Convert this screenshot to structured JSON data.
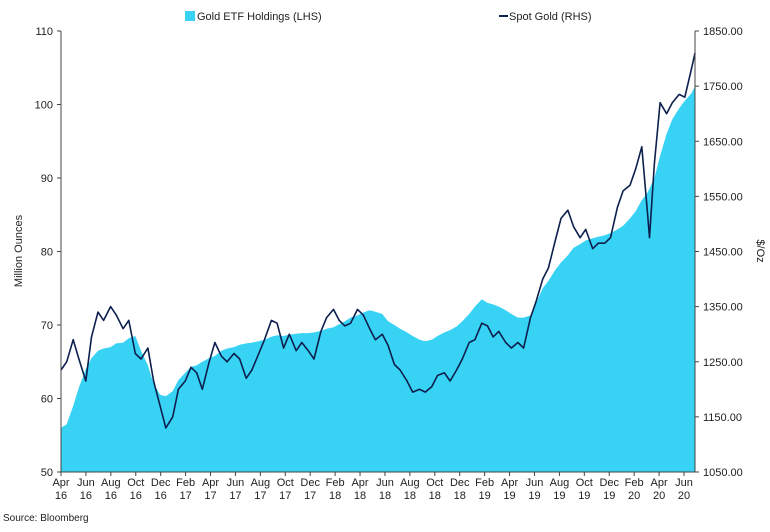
{
  "chart_data": {
    "type": "area",
    "legend_position": "top",
    "grid": false,
    "source_note": "Source: Bloomberg",
    "ylabel_left": "Million Ounces",
    "ylabel_right": "$/Oz",
    "ylim_left": [
      50,
      110
    ],
    "ylim_right": [
      1050,
      1850
    ],
    "yticks_left": [
      "50",
      "60",
      "70",
      "80",
      "90",
      "100",
      "110"
    ],
    "yticks_right": [
      "1050.00",
      "1150.00",
      "1250.00",
      "1350.00",
      "1450.00",
      "1550.00",
      "1650.00",
      "1750.00",
      "1850.00"
    ],
    "x_ticks": [
      {
        "month": "Apr",
        "year": "16"
      },
      {
        "month": "Jun",
        "year": "16"
      },
      {
        "month": "Aug",
        "year": "16"
      },
      {
        "month": "Oct",
        "year": "16"
      },
      {
        "month": "Dec",
        "year": "16"
      },
      {
        "month": "Feb",
        "year": "17"
      },
      {
        "month": "Apr",
        "year": "17"
      },
      {
        "month": "Jun",
        "year": "17"
      },
      {
        "month": "Aug",
        "year": "17"
      },
      {
        "month": "Oct",
        "year": "17"
      },
      {
        "month": "Dec",
        "year": "17"
      },
      {
        "month": "Feb",
        "year": "18"
      },
      {
        "month": "Apr",
        "year": "18"
      },
      {
        "month": "Jun",
        "year": "18"
      },
      {
        "month": "Aug",
        "year": "18"
      },
      {
        "month": "Oct",
        "year": "18"
      },
      {
        "month": "Dec",
        "year": "18"
      },
      {
        "month": "Feb",
        "year": "19"
      },
      {
        "month": "Apr",
        "year": "19"
      },
      {
        "month": "Jun",
        "year": "19"
      },
      {
        "month": "Aug",
        "year": "19"
      },
      {
        "month": "Oct",
        "year": "19"
      },
      {
        "month": "Dec",
        "year": "19"
      },
      {
        "month": "Feb",
        "year": "20"
      },
      {
        "month": "Apr",
        "year": "20"
      },
      {
        "month": "Jun",
        "year": "20"
      }
    ],
    "series": [
      {
        "name": "Gold ETF Holdings (LHS)",
        "type": "area",
        "axis": "left",
        "color": "#38d2f5",
        "x": [
          "2016-04-01",
          "2016-04-15",
          "2016-05-01",
          "2016-05-15",
          "2016-06-01",
          "2016-06-15",
          "2016-07-01",
          "2016-07-15",
          "2016-08-01",
          "2016-08-15",
          "2016-09-01",
          "2016-09-15",
          "2016-10-01",
          "2016-10-15",
          "2016-11-01",
          "2016-11-15",
          "2016-12-01",
          "2016-12-15",
          "2017-01-01",
          "2017-01-15",
          "2017-02-01",
          "2017-02-15",
          "2017-03-01",
          "2017-03-15",
          "2017-04-01",
          "2017-04-15",
          "2017-05-01",
          "2017-05-15",
          "2017-06-01",
          "2017-06-15",
          "2017-07-01",
          "2017-07-15",
          "2017-08-01",
          "2017-08-15",
          "2017-09-01",
          "2017-09-15",
          "2017-10-01",
          "2017-10-15",
          "2017-11-01",
          "2017-11-15",
          "2017-12-01",
          "2017-12-15",
          "2018-01-01",
          "2018-01-15",
          "2018-02-01",
          "2018-02-15",
          "2018-03-01",
          "2018-03-15",
          "2018-04-01",
          "2018-04-15",
          "2018-05-01",
          "2018-05-15",
          "2018-06-01",
          "2018-06-15",
          "2018-07-01",
          "2018-07-15",
          "2018-08-01",
          "2018-08-15",
          "2018-09-01",
          "2018-09-15",
          "2018-10-01",
          "2018-10-15",
          "2018-11-01",
          "2018-11-15",
          "2018-12-01",
          "2018-12-15",
          "2019-01-01",
          "2019-01-15",
          "2019-02-01",
          "2019-02-15",
          "2019-03-01",
          "2019-03-15",
          "2019-04-01",
          "2019-04-15",
          "2019-05-01",
          "2019-05-15",
          "2019-06-01",
          "2019-06-15",
          "2019-07-01",
          "2019-07-15",
          "2019-08-01",
          "2019-08-15",
          "2019-09-01",
          "2019-09-15",
          "2019-10-01",
          "2019-10-15",
          "2019-11-01",
          "2019-11-15",
          "2019-12-01",
          "2019-12-15",
          "2020-01-01",
          "2020-01-15",
          "2020-02-01",
          "2020-02-15",
          "2020-03-01",
          "2020-03-15",
          "2020-04-01",
          "2020-04-15",
          "2020-05-01",
          "2020-05-15",
          "2020-06-01",
          "2020-06-15",
          "2020-07-01",
          "2020-07-10"
        ],
        "values": [
          56,
          56.5,
          59,
          61.5,
          64,
          65.5,
          66.5,
          66.8,
          67,
          67.5,
          67.6,
          68.2,
          68.5,
          66.5,
          64.5,
          62,
          60.5,
          60.3,
          61,
          62.5,
          63.5,
          64.3,
          64.5,
          65,
          65.5,
          65.8,
          66.5,
          66.8,
          67,
          67.3,
          67.5,
          67.6,
          67.8,
          68,
          68.4,
          68.6,
          68.5,
          68.7,
          68.8,
          68.9,
          68.9,
          69,
          69.2,
          69.5,
          69.7,
          70.1,
          70.5,
          71,
          71.3,
          71.7,
          72,
          71.8,
          71.5,
          70.5,
          70,
          69.5,
          69,
          68.5,
          68,
          67.8,
          68,
          68.5,
          69,
          69.3,
          69.8,
          70.5,
          71.5,
          72.5,
          73.5,
          73,
          72.8,
          72.5,
          72,
          71.5,
          71,
          71,
          71.3,
          73,
          75,
          76,
          77.5,
          78.5,
          79.5,
          80.5,
          81,
          81.5,
          81.8,
          82,
          82.2,
          82.5,
          83,
          83.5,
          84.5,
          85.5,
          87,
          88,
          90,
          93,
          96,
          98,
          99.5,
          100.5,
          101.5,
          102.5
        ]
      },
      {
        "name": "Spot Gold (RHS)",
        "type": "line",
        "axis": "right",
        "color": "#0d1f4c",
        "x": [
          "2016-04-01",
          "2016-04-15",
          "2016-05-01",
          "2016-05-15",
          "2016-06-01",
          "2016-06-15",
          "2016-07-01",
          "2016-07-15",
          "2016-08-01",
          "2016-08-15",
          "2016-09-01",
          "2016-09-15",
          "2016-10-01",
          "2016-10-15",
          "2016-11-01",
          "2016-11-15",
          "2016-12-01",
          "2016-12-15",
          "2017-01-01",
          "2017-01-15",
          "2017-02-01",
          "2017-02-15",
          "2017-03-01",
          "2017-03-15",
          "2017-04-01",
          "2017-04-15",
          "2017-05-01",
          "2017-05-15",
          "2017-06-01",
          "2017-06-15",
          "2017-07-01",
          "2017-07-15",
          "2017-08-01",
          "2017-08-15",
          "2017-09-01",
          "2017-09-15",
          "2017-10-01",
          "2017-10-15",
          "2017-11-01",
          "2017-11-15",
          "2017-12-01",
          "2017-12-15",
          "2018-01-01",
          "2018-01-15",
          "2018-02-01",
          "2018-02-15",
          "2018-03-01",
          "2018-03-15",
          "2018-04-01",
          "2018-04-15",
          "2018-05-01",
          "2018-05-15",
          "2018-06-01",
          "2018-06-15",
          "2018-07-01",
          "2018-07-15",
          "2018-08-01",
          "2018-08-15",
          "2018-09-01",
          "2018-09-15",
          "2018-10-01",
          "2018-10-15",
          "2018-11-01",
          "2018-11-15",
          "2018-12-01",
          "2018-12-15",
          "2019-01-01",
          "2019-01-15",
          "2019-02-01",
          "2019-02-15",
          "2019-03-01",
          "2019-03-15",
          "2019-04-01",
          "2019-04-15",
          "2019-05-01",
          "2019-05-15",
          "2019-06-01",
          "2019-06-15",
          "2019-07-01",
          "2019-07-15",
          "2019-08-01",
          "2019-08-15",
          "2019-09-01",
          "2019-09-15",
          "2019-10-01",
          "2019-10-15",
          "2019-11-01",
          "2019-11-15",
          "2019-12-01",
          "2019-12-15",
          "2020-01-01",
          "2020-01-15",
          "2020-02-01",
          "2020-02-15",
          "2020-03-01",
          "2020-03-15",
          "2020-03-20",
          "2020-04-01",
          "2020-04-15",
          "2020-05-01",
          "2020-05-15",
          "2020-06-01",
          "2020-06-15",
          "2020-07-01",
          "2020-07-10"
        ],
        "values": [
          1235,
          1250,
          1290,
          1255,
          1215,
          1295,
          1340,
          1325,
          1350,
          1335,
          1310,
          1325,
          1265,
          1255,
          1275,
          1215,
          1170,
          1130,
          1150,
          1200,
          1215,
          1240,
          1230,
          1200,
          1250,
          1285,
          1260,
          1250,
          1265,
          1255,
          1220,
          1235,
          1265,
          1290,
          1325,
          1320,
          1275,
          1300,
          1270,
          1285,
          1270,
          1255,
          1305,
          1330,
          1345,
          1325,
          1315,
          1320,
          1345,
          1335,
          1310,
          1290,
          1300,
          1280,
          1245,
          1235,
          1215,
          1195,
          1200,
          1195,
          1205,
          1225,
          1230,
          1215,
          1235,
          1255,
          1285,
          1290,
          1320,
          1315,
          1295,
          1305,
          1285,
          1275,
          1285,
          1275,
          1330,
          1360,
          1400,
          1420,
          1470,
          1510,
          1525,
          1495,
          1475,
          1490,
          1455,
          1465,
          1465,
          1475,
          1530,
          1560,
          1570,
          1600,
          1640,
          1520,
          1475,
          1610,
          1720,
          1700,
          1720,
          1735,
          1730,
          1780,
          1810
        ]
      }
    ]
  }
}
